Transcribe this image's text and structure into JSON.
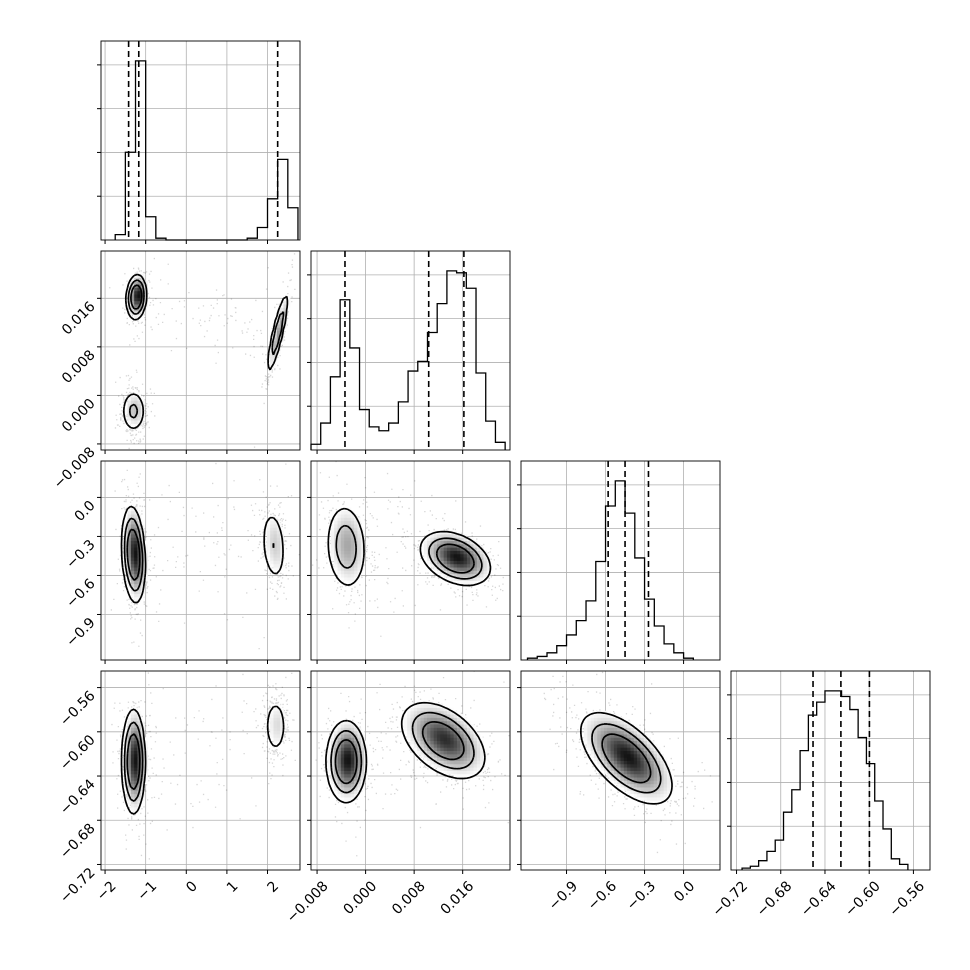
{
  "chart_data": {
    "type": "corner",
    "parameters": [
      {
        "name": "",
        "range": [
          -2.1,
          2.8
        ],
        "ticks": [
          -2,
          -1,
          0,
          1,
          2
        ],
        "tick_labels": [
          "−2",
          "−1",
          "0",
          "1",
          "2"
        ],
        "quantiles": [
          -1.42,
          -1.17,
          2.25
        ],
        "histogram": {
          "bin_edges": [
            -1.75,
            -1.5,
            -1.25,
            -1.0,
            -0.75,
            -0.5,
            -0.25,
            0.0,
            0.25,
            0.5,
            0.75,
            1.0,
            1.25,
            1.5,
            1.75,
            2.0,
            2.25,
            2.5,
            2.75
          ],
          "counts": [
            0.03,
            0.49,
            1.0,
            0.13,
            0.01,
            0.0,
            0.0,
            0.0,
            0.0,
            0.0,
            0.0,
            0.0,
            0.0,
            0.01,
            0.07,
            0.23,
            0.45,
            0.18
          ]
        }
      },
      {
        "name": "",
        "range": [
          -0.009,
          0.0238
        ],
        "ticks": [
          -0.008,
          0.0,
          0.008,
          0.016
        ],
        "tick_labels": [
          "−0.008",
          "0.000",
          "0.008",
          "0.016"
        ],
        "quantiles": [
          -0.0034,
          0.0104,
          0.0162
        ],
        "histogram": {
          "bin_edges": [
            -0.009,
            -0.0074,
            -0.0058,
            -0.0042,
            -0.0026,
            -0.001,
            0.0006,
            0.0022,
            0.0038,
            0.0054,
            0.007,
            0.0086,
            0.0102,
            0.0118,
            0.0134,
            0.015,
            0.0166,
            0.0182,
            0.0198,
            0.0214,
            0.023
          ],
          "counts": [
            0.03,
            0.14,
            0.38,
            0.78,
            0.53,
            0.21,
            0.12,
            0.1,
            0.14,
            0.25,
            0.41,
            0.46,
            0.61,
            0.76,
            0.93,
            0.92,
            0.84,
            0.4,
            0.15,
            0.04
          ]
        }
      },
      {
        "name": "",
        "range": [
          -1.25,
          0.28
        ],
        "ticks": [
          -0.9,
          -0.6,
          -0.3,
          0.0
        ],
        "tick_labels": [
          "−0.9",
          "−0.6",
          "−0.3",
          "0.0"
        ],
        "quantiles": [
          -0.58,
          -0.45,
          -0.27
        ],
        "histogram": {
          "bin_edges": [
            -1.2,
            -1.125,
            -1.05,
            -0.975,
            -0.9,
            -0.825,
            -0.75,
            -0.675,
            -0.6,
            -0.525,
            -0.45,
            -0.375,
            -0.3,
            -0.225,
            -0.15,
            -0.075,
            0.0,
            0.075
          ],
          "counts": [
            0.01,
            0.02,
            0.04,
            0.08,
            0.14,
            0.22,
            0.33,
            0.55,
            0.86,
            1.0,
            0.82,
            0.57,
            0.34,
            0.19,
            0.09,
            0.04,
            0.01
          ]
        }
      },
      {
        "name": "",
        "range": [
          -0.725,
          -0.545
        ],
        "ticks": [
          -0.72,
          -0.68,
          -0.64,
          -0.6,
          -0.56
        ],
        "tick_labels": [
          "−0.72",
          "−0.68",
          "−0.64",
          "−0.60",
          "−0.56"
        ],
        "quantiles": [
          -0.6508,
          -0.6256,
          -0.5998
        ],
        "histogram": {
          "bin_edges": [
            -0.715,
            -0.7075,
            -0.7,
            -0.6925,
            -0.685,
            -0.6775,
            -0.67,
            -0.6625,
            -0.655,
            -0.6475,
            -0.64,
            -0.6325,
            -0.625,
            -0.6175,
            -0.61,
            -0.6025,
            -0.595,
            -0.5875,
            -0.58,
            -0.5725,
            -0.565
          ],
          "counts": [
            0.01,
            0.02,
            0.05,
            0.1,
            0.16,
            0.31,
            0.43,
            0.64,
            0.83,
            0.9,
            0.96,
            0.96,
            0.93,
            0.86,
            0.71,
            0.57,
            0.37,
            0.22,
            0.06,
            0.03
          ]
        }
      }
    ],
    "modes_2d": {
      "1-0": [
        {
          "mx": -1.23,
          "my": 0.0162,
          "sx": 0.12,
          "sy": 0.0018,
          "rho": 0.1,
          "w": 0.36,
          "peak": 1.0
        },
        {
          "mx": -1.3,
          "my": -0.0026,
          "sx": 0.16,
          "sy": 0.0019,
          "rho": 0.0,
          "w": 0.36,
          "peak": 0.35
        },
        {
          "mx": 2.25,
          "my": 0.0103,
          "sx": 0.14,
          "sy": 0.0036,
          "rho": 0.86,
          "w": 0.28,
          "peak": 0.5
        }
      ],
      "2-0": [
        {
          "mx": -1.3,
          "my": -0.44,
          "sx": 0.14,
          "sy": 0.18,
          "rho": -0.2,
          "w": 0.72,
          "peak": 1.0
        },
        {
          "mx": 2.15,
          "my": -0.37,
          "sx": 0.17,
          "sy": 0.16,
          "rho": -0.2,
          "w": 0.28,
          "peak": 0.3
        }
      ],
      "2-1": [
        {
          "mx": -0.0032,
          "my": -0.38,
          "sx": 0.0018,
          "sy": 0.18,
          "rho": -0.1,
          "w": 0.36,
          "peak": 0.45
        },
        {
          "mx": 0.0148,
          "my": -0.47,
          "sx": 0.0028,
          "sy": 0.1,
          "rho": -0.35,
          "w": 0.64,
          "peak": 1.0
        }
      ],
      "3-0": [
        {
          "mx": -1.3,
          "my": -0.627,
          "sx": 0.14,
          "sy": 0.023,
          "rho": 0.0,
          "w": 0.72,
          "peak": 1.0
        },
        {
          "mx": 2.2,
          "my": -0.595,
          "sx": 0.16,
          "sy": 0.015,
          "rho": 0.0,
          "w": 0.28,
          "peak": 0.25
        }
      ],
      "3-1": [
        {
          "mx": -0.0032,
          "my": -0.627,
          "sx": 0.0016,
          "sy": 0.018,
          "rho": 0.0,
          "w": 0.36,
          "peak": 1.0
        },
        {
          "mx": 0.0128,
          "my": -0.608,
          "sx": 0.0034,
          "sy": 0.017,
          "rho": -0.45,
          "w": 0.64,
          "peak": 0.9
        }
      ],
      "3-2": [
        {
          "mx": -0.44,
          "my": -0.624,
          "sx": 0.17,
          "sy": 0.02,
          "rho": -0.6,
          "w": 1.0,
          "peak": 1.0
        }
      ]
    },
    "grid": true,
    "legend": "none"
  }
}
